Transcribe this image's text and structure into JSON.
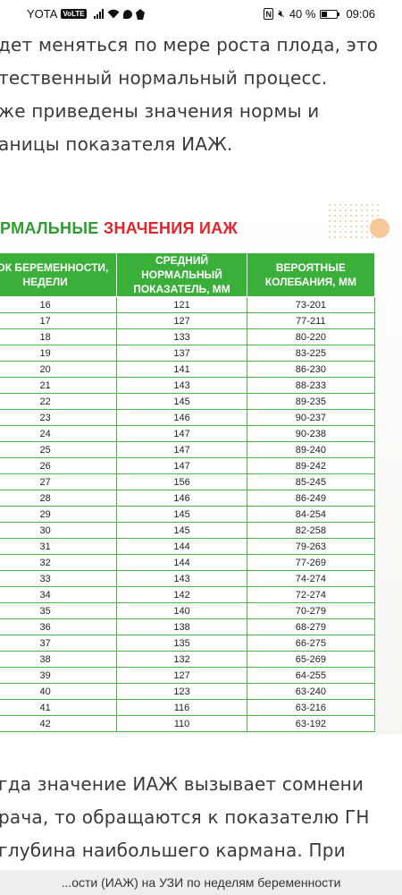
{
  "status_bar": {
    "carrier": "YOTA",
    "volte": "VoLTE",
    "battery_percent": "40 %",
    "time": "09:06",
    "battery_level": 0.4
  },
  "article": {
    "top_lines": [
      "дет меняться по мере роста плода, это",
      "тественный нормальный процесс.",
      "же приведены значения нормы и",
      "аницы показателя ИАЖ."
    ],
    "bottom_lines": [
      "гда значение ИАЖ вызывает сомнени",
      "рача, то обращаются к показателю ГН",
      "глубина наибольшего кармана. При"
    ]
  },
  "infographic": {
    "title_part1": "РМАЛЬНЫЕ ",
    "title_part2": "ЗНАЧЕНИЯ ИАЖ",
    "headers": [
      [
        "СРОК БЕРЕМЕННОСТИ,",
        "НЕДЕЛИ"
      ],
      [
        "СРЕДНИЙ НОРМАЛЬНЫЙ",
        "ПОКАЗАТЕЛЬ, ММ"
      ],
      [
        "ВЕРОЯТНЫЕ",
        "КОЛЕБАНИЯ, ММ"
      ]
    ],
    "rows": [
      [
        "16",
        "121",
        "73-201"
      ],
      [
        "17",
        "127",
        "77-211"
      ],
      [
        "18",
        "133",
        "80-220"
      ],
      [
        "19",
        "137",
        "83-225"
      ],
      [
        "20",
        "141",
        "86-230"
      ],
      [
        "21",
        "143",
        "88-233"
      ],
      [
        "22",
        "145",
        "89-235"
      ],
      [
        "23",
        "146",
        "90-237"
      ],
      [
        "24",
        "147",
        "90-238"
      ],
      [
        "25",
        "147",
        "89-240"
      ],
      [
        "26",
        "147",
        "89-242"
      ],
      [
        "27",
        "156",
        "85-245"
      ],
      [
        "28",
        "146",
        "86-249"
      ],
      [
        "29",
        "145",
        "84-254"
      ],
      [
        "30",
        "145",
        "82-258"
      ],
      [
        "31",
        "144",
        "79-263"
      ],
      [
        "32",
        "144",
        "77-269"
      ],
      [
        "33",
        "143",
        "74-274"
      ],
      [
        "34",
        "142",
        "72-274"
      ],
      [
        "35",
        "140",
        "70-279"
      ],
      [
        "36",
        "138",
        "68-279"
      ],
      [
        "37",
        "135",
        "66-275"
      ],
      [
        "38",
        "132",
        "65-269"
      ],
      [
        "39",
        "127",
        "64-255"
      ],
      [
        "40",
        "123",
        "63-240"
      ],
      [
        "41",
        "116",
        "63-216"
      ],
      [
        "42",
        "110",
        "63-192"
      ]
    ]
  },
  "bottom_bar": {
    "caption": "...ости (ИАЖ) на УЗИ по неделям беременности"
  }
}
